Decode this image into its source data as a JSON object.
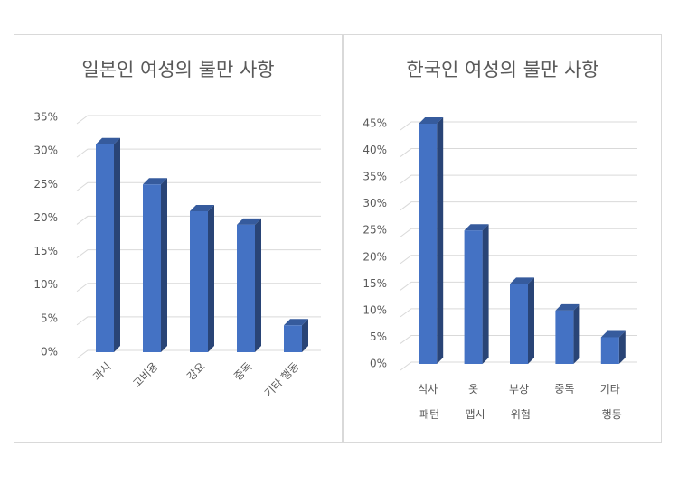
{
  "chart_data": [
    {
      "type": "bar",
      "title": "일본인 여성의 불만 사항",
      "categories": [
        "과시",
        "고비용",
        "강요",
        "중독",
        "기타 행동"
      ],
      "values": [
        31,
        25,
        21,
        19,
        4
      ],
      "color": "#4472c4",
      "ylim": [
        0,
        35
      ],
      "yticks": [
        {
          "value": 0,
          "label": "0%"
        },
        {
          "value": 5,
          "label": "5%"
        },
        {
          "value": 10,
          "label": "10%"
        },
        {
          "value": 15,
          "label": "15%"
        },
        {
          "value": 20,
          "label": "20%"
        },
        {
          "value": 25,
          "label": "25%"
        },
        {
          "value": 30,
          "label": "30%"
        },
        {
          "value": 35,
          "label": "35%"
        }
      ],
      "grid": true
    },
    {
      "type": "bar",
      "title": "한국인 여성의 불만 사항",
      "categories": [
        "식사 패턴",
        "옷 맵시",
        "부상 위험",
        "중독",
        "기타 행동"
      ],
      "values": [
        45,
        25,
        15,
        10,
        5
      ],
      "color": "#4472c4",
      "ylim": [
        0,
        45
      ],
      "yticks": [
        {
          "value": 0,
          "label": "0%"
        },
        {
          "value": 5,
          "label": "5%"
        },
        {
          "value": 10,
          "label": "10%"
        },
        {
          "value": 15,
          "label": "15%"
        },
        {
          "value": 20,
          "label": "20%"
        },
        {
          "value": 25,
          "label": "25%"
        },
        {
          "value": 30,
          "label": "30%"
        },
        {
          "value": 35,
          "label": "35%"
        },
        {
          "value": 40,
          "label": "40%"
        },
        {
          "value": 45,
          "label": "45%"
        }
      ],
      "grid": true
    }
  ]
}
